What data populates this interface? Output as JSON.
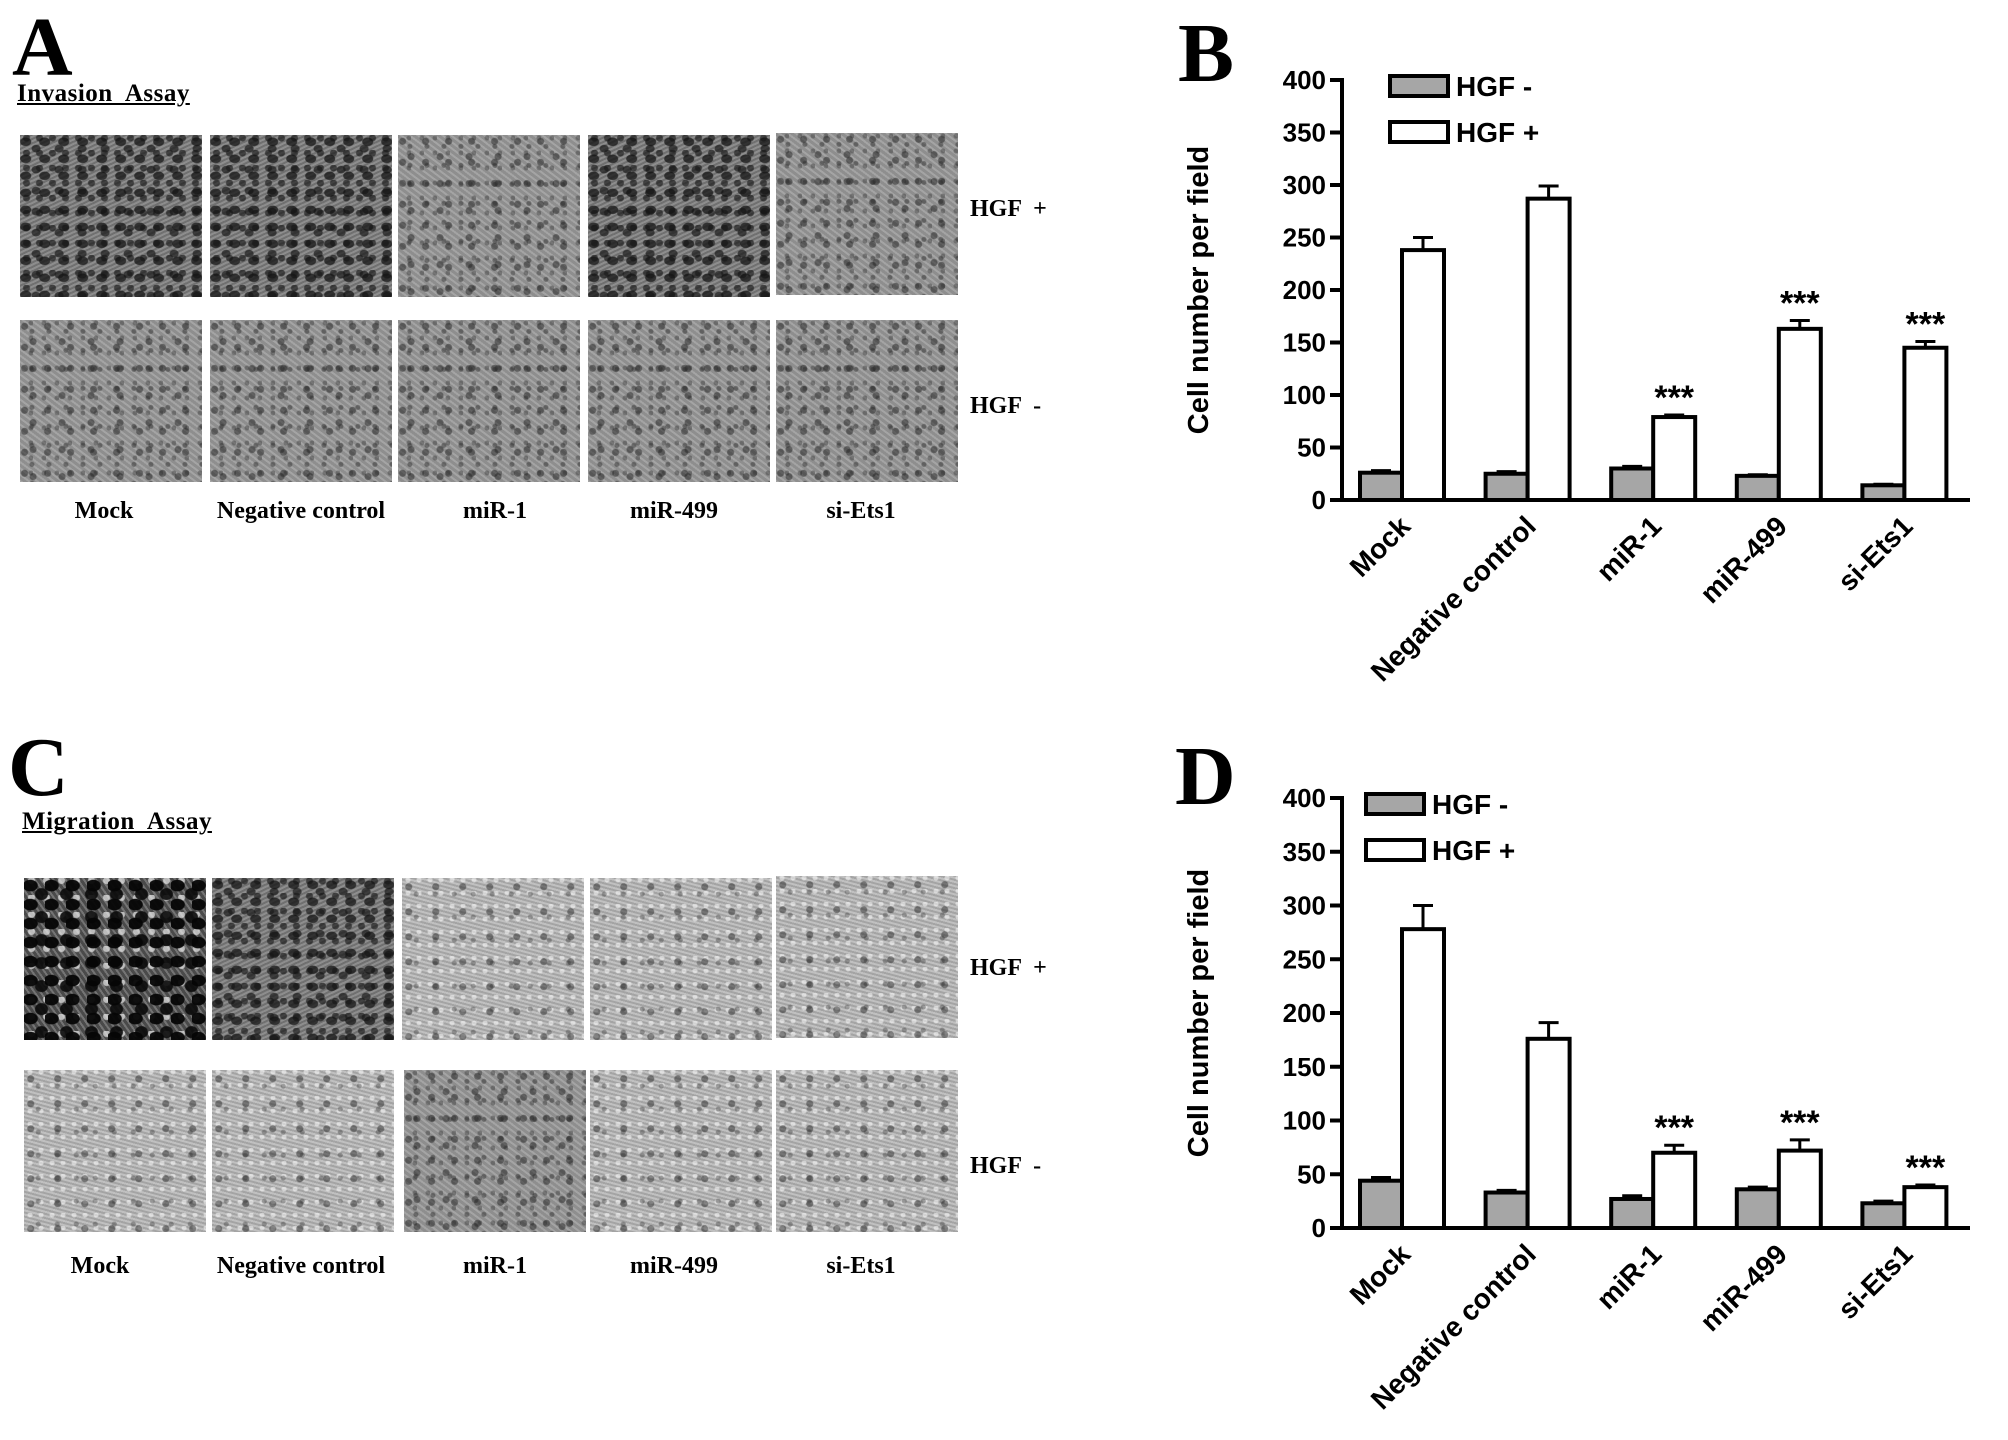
{
  "panels": {
    "a": {
      "letter": "A",
      "assay_title": "Invasion  Assay",
      "rows": [
        "HGF  +",
        "HGF  -"
      ],
      "columns": [
        "Mock",
        "Negative control",
        "miR-1",
        "miR-499",
        "si-Ets1"
      ]
    },
    "b": {
      "letter": "B"
    },
    "c": {
      "letter": "C",
      "assay_title": "Migration  Assay",
      "rows": [
        "HGF  +",
        "HGF  -"
      ],
      "columns": [
        "Mock",
        "Negative control",
        "miR-1",
        "miR-499",
        "si-Ets1"
      ]
    },
    "d": {
      "letter": "D"
    }
  },
  "colors": {
    "hgf_minus": "#a6a6a6",
    "hgf_plus": "#ffffff",
    "axis": "#000000"
  },
  "chart_data": [
    {
      "panel": "B",
      "type": "bar",
      "categories": [
        "Mock",
        "Negative control",
        "miR-1",
        "miR-499",
        "si-Ets1"
      ],
      "series": [
        {
          "name": "HGF -",
          "values": [
            26,
            25,
            30,
            23,
            14
          ],
          "errors": [
            2,
            2,
            2,
            1,
            1
          ],
          "color": "#a6a6a6"
        },
        {
          "name": "HGF +",
          "values": [
            238,
            287,
            79,
            163,
            145
          ],
          "errors": [
            12,
            12,
            2,
            8,
            6
          ],
          "color": "#ffffff"
        }
      ],
      "significance": [
        "",
        "",
        "***",
        "***",
        "***"
      ],
      "ylabel": "Cell number per field",
      "ylim": [
        0,
        400
      ],
      "yticks": [
        0,
        50,
        100,
        150,
        200,
        250,
        300,
        350,
        400
      ],
      "legend": "top-left"
    },
    {
      "panel": "D",
      "type": "bar",
      "categories": [
        "Mock",
        "Negative control",
        "miR-1",
        "miR-499",
        "si-Ets1"
      ],
      "series": [
        {
          "name": "HGF -",
          "values": [
            44,
            33,
            27,
            36,
            23
          ],
          "errors": [
            3,
            2,
            3,
            2,
            2
          ],
          "color": "#a6a6a6"
        },
        {
          "name": "HGF +",
          "values": [
            278,
            176,
            70,
            72,
            38
          ],
          "errors": [
            22,
            15,
            7,
            10,
            2
          ],
          "color": "#ffffff"
        }
      ],
      "significance": [
        "",
        "",
        "***",
        "***",
        "***"
      ],
      "ylabel": "Cell number per field",
      "ylim": [
        0,
        400
      ],
      "yticks": [
        0,
        50,
        100,
        150,
        200,
        250,
        300,
        350,
        400
      ],
      "legend": "top-left"
    }
  ]
}
